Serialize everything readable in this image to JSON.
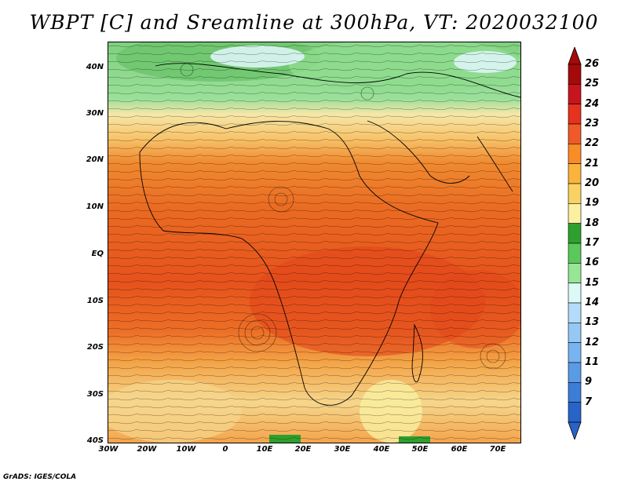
{
  "title": "WBPT [C] and Sreamline at 300hPa, VT: 2020032100",
  "credit": "GrADS: IGES/COLA",
  "lat_labels": [
    "40N",
    "30N",
    "20N",
    "10N",
    "EQ",
    "10S",
    "20S",
    "30S",
    "40S"
  ],
  "lon_labels": [
    "30W",
    "20W",
    "10W",
    "0",
    "10E",
    "20E",
    "30E",
    "40E",
    "50E",
    "60E",
    "70E"
  ],
  "colorbar": {
    "labels": [
      "26",
      "25",
      "24",
      "23",
      "22",
      "21",
      "20",
      "19",
      "18",
      "17",
      "16",
      "15",
      "14",
      "13",
      "12",
      "11",
      "9",
      "7"
    ],
    "colors": [
      "#a50a0a",
      "#c8141e",
      "#e6321e",
      "#f05a28",
      "#fa8c28",
      "#fab43c",
      "#fad264",
      "#faf0a0",
      "#2ea02e",
      "#5ac85a",
      "#96e696",
      "#dcfaf5",
      "#b4dcfa",
      "#96c8f5",
      "#78b4f0",
      "#5a9be6",
      "#3c7dd7",
      "#2864c8"
    ]
  }
}
